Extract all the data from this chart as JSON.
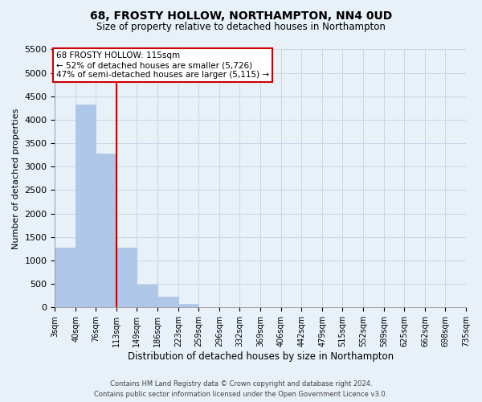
{
  "title": "68, FROSTY HOLLOW, NORTHAMPTON, NN4 0UD",
  "subtitle": "Size of property relative to detached houses in Northampton",
  "xlabel": "Distribution of detached houses by size in Northampton",
  "ylabel": "Number of detached properties",
  "bin_edges": [
    3,
    40,
    76,
    113,
    149,
    186,
    223,
    259,
    296,
    332,
    369,
    406,
    442,
    479,
    515,
    552,
    589,
    625,
    662,
    698,
    735
  ],
  "bin_labels": [
    "3sqm",
    "40sqm",
    "76sqm",
    "113sqm",
    "149sqm",
    "186sqm",
    "223sqm",
    "259sqm",
    "296sqm",
    "332sqm",
    "369sqm",
    "406sqm",
    "442sqm",
    "479sqm",
    "515sqm",
    "552sqm",
    "589sqm",
    "625sqm",
    "662sqm",
    "698sqm",
    "735sqm"
  ],
  "bar_heights": [
    1270,
    4330,
    3280,
    1280,
    480,
    230,
    80,
    0,
    0,
    0,
    0,
    0,
    0,
    0,
    0,
    0,
    0,
    0,
    0,
    0
  ],
  "bar_color": "#aec6e8",
  "bar_edgecolor": "#aec6e8",
  "property_line_x": 113,
  "property_line_color": "#cc0000",
  "annotation_title": "68 FROSTY HOLLOW: 115sqm",
  "annotation_line1": "← 52% of detached houses are smaller (5,726)",
  "annotation_line2": "47% of semi-detached houses are larger (5,115) →",
  "annotation_box_edgecolor": "#cc0000",
  "annotation_box_facecolor": "#ffffff",
  "ylim": [
    0,
    5500
  ],
  "yticks": [
    0,
    500,
    1000,
    1500,
    2000,
    2500,
    3000,
    3500,
    4000,
    4500,
    5000,
    5500
  ],
  "grid_color": "#c8d8e8",
  "background_color": "#e8f0f8",
  "footer_line1": "Contains HM Land Registry data © Crown copyright and database right 2024.",
  "footer_line2": "Contains public sector information licensed under the Open Government Licence v3.0."
}
